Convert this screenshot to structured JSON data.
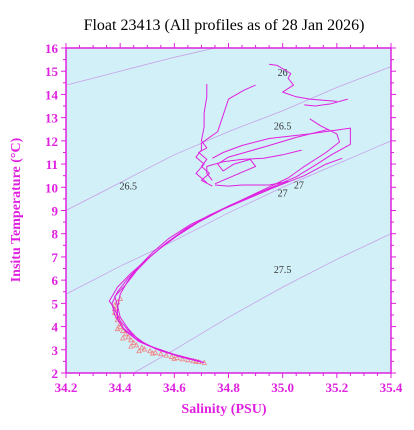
{
  "chart_data": {
    "type": "line",
    "title": "Float 23413  (All profiles as of 28 Jan 2026)",
    "xlabel": "Salinity (PSU)",
    "ylabel": "Insitu Temperature (°C)",
    "xlim": [
      34.2,
      35.4
    ],
    "ylim": [
      2,
      16
    ],
    "x_ticks": [
      "34.2",
      "34.4",
      "34.6",
      "34.8",
      "35.0",
      "35.2",
      "35.4"
    ],
    "y_ticks": [
      "2",
      "3",
      "4",
      "5",
      "6",
      "7",
      "8",
      "9",
      "10",
      "11",
      "12",
      "13",
      "14",
      "15",
      "16"
    ],
    "grid": false,
    "background_color": "#d2f0f8",
    "axis_color": "#e020e0",
    "profile_color": "#e020e0",
    "deep_profile_color": "#f08080",
    "contour_color": "#c8a0e8",
    "density_contours": [
      {
        "label": "26",
        "points": [
          [
            34.2,
            14.4
          ],
          [
            34.4,
            15.0
          ],
          [
            34.6,
            15.6
          ],
          [
            34.75,
            16.0
          ]
        ],
        "label_at": [
          35.0,
          14.8
        ]
      },
      {
        "label": "26.5",
        "points": [
          [
            34.2,
            9.0
          ],
          [
            34.4,
            10.2
          ],
          [
            34.6,
            11.4
          ],
          [
            34.8,
            12.4
          ],
          [
            35.0,
            13.3
          ],
          [
            35.2,
            14.3
          ],
          [
            35.4,
            15.2
          ]
        ],
        "label_at": [
          34.43,
          9.9
        ]
      },
      {
        "label": "26.5",
        "points": [],
        "label_at": [
          35.0,
          12.5
        ]
      },
      {
        "label": "27",
        "points": [
          [
            34.2,
            5.4
          ],
          [
            34.4,
            6.6
          ],
          [
            34.6,
            7.7
          ],
          [
            34.8,
            8.9
          ],
          [
            35.0,
            10.0
          ],
          [
            35.2,
            11.0
          ],
          [
            35.4,
            12.0
          ]
        ],
        "label_at": [
          35.0,
          9.6
        ]
      },
      {
        "label": "27",
        "points": [],
        "label_at": [
          35.06,
          9.95
        ]
      },
      {
        "label": "27.5",
        "points": [
          [
            34.45,
            2.0
          ],
          [
            34.6,
            3.0
          ],
          [
            34.8,
            4.4
          ],
          [
            35.0,
            5.7
          ],
          [
            35.2,
            6.9
          ],
          [
            35.4,
            8.0
          ]
        ],
        "label_at": [
          35.0,
          6.3
        ]
      }
    ],
    "series": [
      {
        "points": [
          [
            34.71,
            2.45
          ],
          [
            34.64,
            2.65
          ],
          [
            34.55,
            2.95
          ],
          [
            34.47,
            3.35
          ],
          [
            34.42,
            3.8
          ],
          [
            34.39,
            4.3
          ],
          [
            34.39,
            4.8
          ],
          [
            34.4,
            5.4
          ],
          [
            34.43,
            6.0
          ],
          [
            34.47,
            6.6
          ],
          [
            34.52,
            7.2
          ],
          [
            34.58,
            7.8
          ],
          [
            34.66,
            8.4
          ],
          [
            34.75,
            8.9
          ],
          [
            34.84,
            9.4
          ],
          [
            34.93,
            9.9
          ],
          [
            35.02,
            10.4
          ],
          [
            35.08,
            10.9
          ],
          [
            35.16,
            11.5
          ],
          [
            35.21,
            11.95
          ],
          [
            35.2,
            12.3
          ],
          [
            35.14,
            12.65
          ],
          [
            35.1,
            12.95
          ]
        ]
      },
      {
        "points": [
          [
            34.71,
            2.45
          ],
          [
            34.63,
            2.7
          ],
          [
            34.54,
            3.0
          ],
          [
            34.47,
            3.4
          ],
          [
            34.43,
            3.9
          ],
          [
            34.4,
            4.4
          ],
          [
            34.39,
            4.9
          ],
          [
            34.38,
            5.3
          ],
          [
            34.42,
            5.8
          ],
          [
            34.46,
            6.4
          ],
          [
            34.51,
            7.0
          ],
          [
            34.57,
            7.6
          ],
          [
            34.64,
            8.2
          ],
          [
            34.73,
            8.8
          ],
          [
            34.83,
            9.35
          ],
          [
            34.95,
            9.95
          ],
          [
            35.05,
            10.45
          ],
          [
            35.12,
            10.95
          ],
          [
            35.18,
            11.4
          ],
          [
            35.25,
            11.85
          ],
          [
            35.25,
            12.55
          ],
          [
            35.1,
            12.3
          ],
          [
            34.95,
            12.1
          ],
          [
            34.85,
            11.8
          ],
          [
            34.78,
            11.5
          ],
          [
            34.74,
            11.25
          ]
        ]
      },
      {
        "points": [
          [
            34.71,
            2.45
          ],
          [
            34.62,
            2.7
          ],
          [
            34.53,
            3.05
          ],
          [
            34.46,
            3.45
          ],
          [
            34.41,
            3.95
          ],
          [
            34.38,
            4.5
          ],
          [
            34.37,
            5.0
          ],
          [
            34.39,
            5.5
          ],
          [
            34.43,
            6.1
          ],
          [
            34.48,
            6.7
          ],
          [
            34.54,
            7.3
          ],
          [
            34.61,
            7.9
          ],
          [
            34.69,
            8.5
          ],
          [
            34.78,
            9.05
          ],
          [
            34.88,
            9.55
          ],
          [
            34.97,
            10.0
          ],
          [
            35.08,
            10.5
          ],
          [
            35.16,
            11.0
          ],
          [
            35.22,
            11.25
          ]
        ]
      },
      {
        "points": [
          [
            34.7,
            2.5
          ],
          [
            34.6,
            2.8
          ],
          [
            34.5,
            3.2
          ],
          [
            34.44,
            3.7
          ],
          [
            34.4,
            4.25
          ],
          [
            34.38,
            4.75
          ],
          [
            34.36,
            5.1
          ],
          [
            34.39,
            5.7
          ],
          [
            34.44,
            6.3
          ],
          [
            34.5,
            6.9
          ],
          [
            34.56,
            7.5
          ],
          [
            34.63,
            8.1
          ],
          [
            34.71,
            8.65
          ],
          [
            34.8,
            9.2
          ],
          [
            34.86,
            9.5
          ],
          [
            34.92,
            9.8
          ],
          [
            34.98,
            10.05
          ],
          [
            35.02,
            10.25
          ],
          [
            34.95,
            10.1
          ],
          [
            34.85,
            10.1
          ],
          [
            34.8,
            10.05
          ],
          [
            34.75,
            10.1
          ]
        ]
      },
      {
        "points": [
          [
            34.74,
            10.05
          ],
          [
            34.7,
            10.3
          ],
          [
            34.73,
            10.6
          ],
          [
            34.7,
            10.9
          ],
          [
            34.72,
            11.2
          ],
          [
            34.69,
            11.5
          ],
          [
            34.72,
            11.7
          ],
          [
            34.7,
            12.0
          ],
          [
            34.71,
            12.6
          ],
          [
            34.71,
            13.2
          ],
          [
            34.72,
            13.9
          ],
          [
            34.72,
            14.45
          ]
        ]
      },
      {
        "points": [
          [
            34.72,
            10.2
          ],
          [
            34.68,
            10.6
          ],
          [
            34.71,
            11.0
          ],
          [
            34.68,
            11.3
          ],
          [
            34.7,
            11.6
          ],
          [
            34.7,
            11.9
          ],
          [
            34.76,
            12.4
          ],
          [
            34.78,
            13.1
          ],
          [
            34.8,
            13.8
          ],
          [
            34.86,
            14.2
          ],
          [
            34.9,
            14.4
          ]
        ]
      },
      {
        "points": [
          [
            34.75,
            10.15
          ],
          [
            34.82,
            10.5
          ],
          [
            34.9,
            10.9
          ],
          [
            34.88,
            11.2
          ],
          [
            34.82,
            11.0
          ],
          [
            34.78,
            10.7
          ],
          [
            34.76,
            11.0
          ],
          [
            34.8,
            11.3
          ],
          [
            34.86,
            11.5
          ],
          [
            34.95,
            11.8
          ],
          [
            35.05,
            12.15
          ],
          [
            35.17,
            12.5
          ]
        ]
      },
      {
        "points": [
          [
            34.74,
            10.3
          ],
          [
            34.72,
            10.6
          ],
          [
            34.72,
            10.9
          ],
          [
            34.78,
            11.1
          ],
          [
            34.85,
            11.2
          ],
          [
            34.93,
            11.25
          ],
          [
            35.0,
            11.4
          ],
          [
            35.07,
            11.6
          ]
        ]
      },
      {
        "points": [
          [
            35.2,
            13.7
          ],
          [
            35.1,
            13.8
          ],
          [
            35.05,
            13.9
          ],
          [
            35.0,
            14.1
          ],
          [
            35.04,
            14.4
          ],
          [
            35.02,
            14.7
          ],
          [
            35.03,
            14.9
          ],
          [
            34.98,
            15.25
          ],
          [
            34.95,
            15.3
          ]
        ]
      },
      {
        "points": [
          [
            35.24,
            13.8
          ],
          [
            35.18,
            13.6
          ],
          [
            35.12,
            13.5
          ],
          [
            35.08,
            13.55
          ]
        ]
      }
    ],
    "deep_points": [
      [
        34.71,
        2.45
      ],
      [
        34.69,
        2.48
      ],
      [
        34.67,
        2.52
      ],
      [
        34.65,
        2.56
      ],
      [
        34.63,
        2.6
      ],
      [
        34.61,
        2.65
      ],
      [
        34.59,
        2.7
      ],
      [
        34.57,
        2.76
      ],
      [
        34.55,
        2.82
      ],
      [
        34.53,
        2.88
      ],
      [
        34.51,
        2.95
      ],
      [
        34.49,
        3.02
      ],
      [
        34.48,
        3.1
      ],
      [
        34.46,
        3.2
      ],
      [
        34.45,
        3.3
      ],
      [
        34.44,
        3.42
      ],
      [
        34.43,
        3.55
      ],
      [
        34.42,
        3.68
      ],
      [
        34.41,
        3.82
      ],
      [
        34.4,
        3.98
      ],
      [
        34.4,
        4.12
      ],
      [
        34.39,
        4.28
      ],
      [
        34.39,
        4.44
      ],
      [
        34.38,
        4.6
      ],
      [
        34.38,
        4.76
      ],
      [
        34.38,
        4.92
      ],
      [
        34.39,
        5.05
      ],
      [
        34.4,
        5.2
      ],
      [
        34.39,
        3.9
      ],
      [
        34.41,
        3.5
      ],
      [
        34.44,
        3.15
      ],
      [
        34.47,
        2.95
      ],
      [
        34.52,
        2.85
      ],
      [
        34.6,
        2.62
      ],
      [
        34.68,
        2.5
      ]
    ]
  }
}
